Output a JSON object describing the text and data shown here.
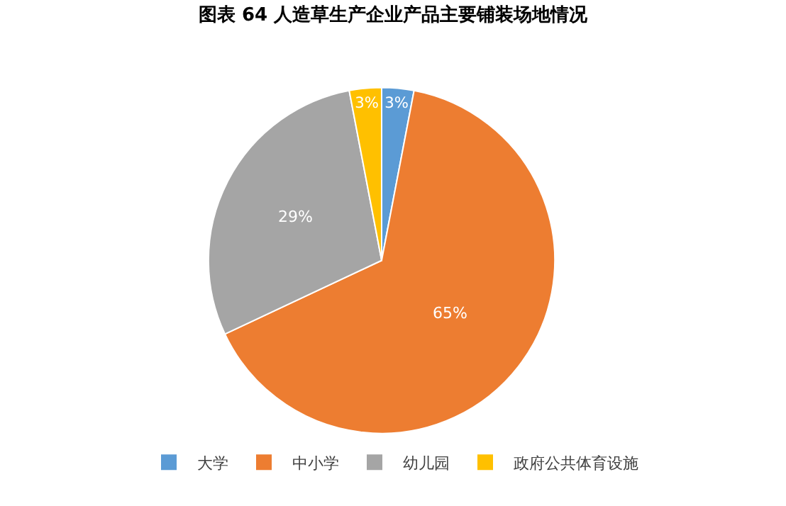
{
  "chart_data": {
    "type": "pie",
    "title": "图表 64 人造草生产企业产品主要铺装场地情况",
    "categories": [
      "大学",
      "中小学",
      "幼儿园",
      "政府公共体育设施"
    ],
    "values": [
      3,
      65,
      29,
      3
    ],
    "colors": [
      "#5b9bd5",
      "#ed7d31",
      "#a5a5a5",
      "#ffc000"
    ],
    "value_labels": [
      "3%",
      "65%",
      "29%",
      "3%"
    ],
    "legend": "bottom"
  }
}
